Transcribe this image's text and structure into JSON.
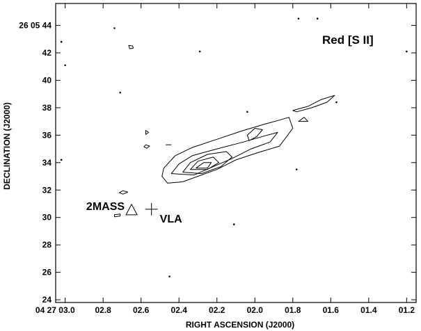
{
  "chart_data": {
    "type": "contour",
    "title": "",
    "xlabel": "RIGHT ASCENSION (J2000)",
    "ylabel": "DECLINATION (J2000)",
    "xlim": [
      3.05,
      1.15
    ],
    "ylim": [
      23.8,
      45.6
    ],
    "x_ticks": [
      {
        "value": 3.0,
        "label": "04 27 03.0"
      },
      {
        "value": 2.8,
        "label": "02.8"
      },
      {
        "value": 2.6,
        "label": "02.6"
      },
      {
        "value": 2.4,
        "label": "02.4"
      },
      {
        "value": 2.2,
        "label": "02.2"
      },
      {
        "value": 2.0,
        "label": "02.0"
      },
      {
        "value": 1.8,
        "label": "01.8"
      },
      {
        "value": 1.6,
        "label": "01.6"
      },
      {
        "value": 1.4,
        "label": "01.4"
      },
      {
        "value": 1.2,
        "label": "01.2"
      }
    ],
    "y_ticks": [
      {
        "value": 44,
        "label": "26 05 44"
      },
      {
        "value": 42,
        "label": "42"
      },
      {
        "value": 40,
        "label": "40"
      },
      {
        "value": 38,
        "label": "38"
      },
      {
        "value": 36,
        "label": "36"
      },
      {
        "value": 34,
        "label": "34"
      },
      {
        "value": 32,
        "label": "32"
      },
      {
        "value": 30,
        "label": "30"
      },
      {
        "value": 28,
        "label": "28"
      },
      {
        "value": 26,
        "label": "26"
      },
      {
        "value": 24,
        "label": "24"
      }
    ],
    "annotation": "Red [S II]",
    "markers": [
      {
        "label": "2MASS",
        "symbol": "triangle",
        "x": 2.65,
        "y": 30.5
      },
      {
        "label": "VLA",
        "symbol": "cross",
        "x": 2.545,
        "y": 30.6
      }
    ],
    "contours": [
      {
        "name": "main-level-1",
        "closed": true,
        "points": [
          [
            2.49,
            33.0
          ],
          [
            2.48,
            33.6
          ],
          [
            2.42,
            34.5
          ],
          [
            2.33,
            35.1
          ],
          [
            2.2,
            35.7
          ],
          [
            2.07,
            36.3
          ],
          [
            1.95,
            36.8
          ],
          [
            1.87,
            37.1
          ],
          [
            1.82,
            37.3
          ],
          [
            1.8,
            36.5
          ],
          [
            1.87,
            35.2
          ],
          [
            1.99,
            34.7
          ],
          [
            2.1,
            34.2
          ],
          [
            2.2,
            33.5
          ],
          [
            2.3,
            33.0
          ],
          [
            2.38,
            32.6
          ],
          [
            2.46,
            32.5
          ]
        ]
      },
      {
        "name": "main-level-2",
        "closed": true,
        "points": [
          [
            2.44,
            33.2
          ],
          [
            2.4,
            33.9
          ],
          [
            2.33,
            34.5
          ],
          [
            2.2,
            35.0
          ],
          [
            2.06,
            35.5
          ],
          [
            1.96,
            35.9
          ],
          [
            1.88,
            36.2
          ],
          [
            1.92,
            35.5
          ],
          [
            2.02,
            35.0
          ],
          [
            2.12,
            34.3
          ],
          [
            2.22,
            33.7
          ],
          [
            2.32,
            33.1
          ]
        ]
      },
      {
        "name": "main-level-3",
        "closed": true,
        "points": [
          [
            2.38,
            33.3
          ],
          [
            2.34,
            34.0
          ],
          [
            2.25,
            34.6
          ],
          [
            2.15,
            34.8
          ],
          [
            2.12,
            34.4
          ],
          [
            2.18,
            33.7
          ],
          [
            2.28,
            33.2
          ]
        ]
      },
      {
        "name": "main-level-4",
        "closed": true,
        "points": [
          [
            2.34,
            33.5
          ],
          [
            2.3,
            34.1
          ],
          [
            2.22,
            34.4
          ],
          [
            2.19,
            34.0
          ],
          [
            2.25,
            33.5
          ]
        ]
      },
      {
        "name": "main-level-5",
        "closed": true,
        "points": [
          [
            2.31,
            33.6
          ],
          [
            2.27,
            34.0
          ],
          [
            2.23,
            34.0
          ],
          [
            2.25,
            33.6
          ]
        ]
      },
      {
        "name": "knot-east",
        "closed": true,
        "points": [
          [
            2.03,
            35.6
          ],
          [
            1.99,
            35.9
          ],
          [
            1.96,
            36.4
          ],
          [
            2.0,
            36.5
          ],
          [
            2.04,
            36.0
          ]
        ]
      },
      {
        "name": "blob-northeast",
        "closed": true,
        "points": [
          [
            1.8,
            37.8
          ],
          [
            1.72,
            38.1
          ],
          [
            1.65,
            38.6
          ],
          [
            1.58,
            38.9
          ],
          [
            1.62,
            38.4
          ],
          [
            1.7,
            38.0
          ],
          [
            1.78,
            37.7
          ]
        ]
      },
      {
        "name": "blob-northeast-2",
        "closed": true,
        "points": [
          [
            1.77,
            37.0
          ],
          [
            1.74,
            37.3
          ],
          [
            1.72,
            37.0
          ]
        ]
      },
      {
        "name": "blob-1",
        "closed": true,
        "points": [
          [
            2.665,
            42.55
          ],
          [
            2.645,
            42.5
          ],
          [
            2.64,
            42.35
          ],
          [
            2.66,
            42.3
          ]
        ]
      },
      {
        "name": "blob-2",
        "closed": true,
        "points": [
          [
            2.695,
            31.95
          ],
          [
            2.67,
            31.85
          ],
          [
            2.695,
            31.7
          ],
          [
            2.715,
            31.8
          ]
        ]
      },
      {
        "name": "blob-3",
        "closed": true,
        "points": [
          [
            2.575,
            36.35
          ],
          [
            2.56,
            36.2
          ],
          [
            2.575,
            36.05
          ]
        ]
      },
      {
        "name": "blob-4",
        "closed": true,
        "points": [
          [
            2.575,
            35.3
          ],
          [
            2.555,
            35.2
          ],
          [
            2.57,
            35.05
          ],
          [
            2.585,
            35.15
          ]
        ]
      },
      {
        "name": "blob-5",
        "closed": true,
        "points": [
          [
            2.74,
            30.2
          ],
          [
            2.71,
            30.25
          ],
          [
            2.71,
            30.1
          ],
          [
            2.74,
            30.05
          ]
        ]
      },
      {
        "name": "dash-1",
        "closed": false,
        "points": [
          [
            2.47,
            35.3
          ],
          [
            2.44,
            35.3
          ]
        ]
      }
    ],
    "noise_points": [
      [
        3.02,
        42.8
      ],
      [
        3.0,
        41.1
      ],
      [
        2.74,
        43.8
      ],
      [
        2.71,
        39.1
      ],
      [
        2.29,
        42.1
      ],
      [
        1.77,
        44.5
      ],
      [
        1.67,
        44.5
      ],
      [
        1.2,
        42.1
      ],
      [
        2.04,
        37.7
      ],
      [
        1.78,
        33.5
      ],
      [
        2.11,
        29.5
      ],
      [
        2.45,
        25.7
      ],
      [
        3.02,
        34.2
      ],
      [
        1.57,
        38.4
      ]
    ]
  }
}
